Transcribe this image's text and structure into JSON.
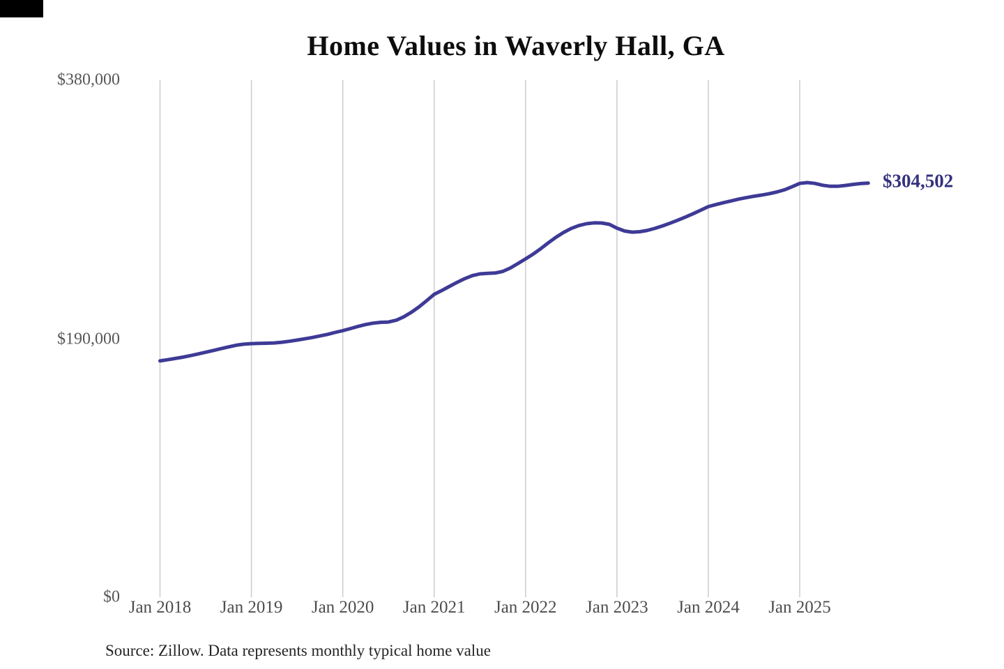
{
  "chart_data": {
    "type": "line",
    "title": "Home Values in Waverly Hall, GA",
    "source": "Source: Zillow. Data represents monthly typical home value",
    "end_label": "$304,502",
    "end_value": 304502,
    "xlabel": "",
    "ylabel": "",
    "ylim": [
      0,
      380000
    ],
    "grid": "vertical-only",
    "legend": "none",
    "line_color": "#3e3a96",
    "end_label_color": "#34317f",
    "grid_color": "#cccccc",
    "x_ticks": [
      "Jan 2018",
      "Jan 2019",
      "Jan 2020",
      "Jan 2021",
      "Jan 2022",
      "Jan 2023",
      "Jan 2024",
      "Jan 2025"
    ],
    "y_ticks": [
      {
        "label": "$380,000",
        "value": 380000
      },
      {
        "label": "$190,000",
        "value": 190000
      },
      {
        "label": "$0",
        "value": 0
      }
    ],
    "series": [
      {
        "name": "Monthly typical home value",
        "months": [
          "2018-01",
          "2018-02",
          "2018-03",
          "2018-04",
          "2018-05",
          "2018-06",
          "2018-07",
          "2018-08",
          "2018-09",
          "2018-10",
          "2018-11",
          "2018-12",
          "2019-01",
          "2019-02",
          "2019-03",
          "2019-04",
          "2019-05",
          "2019-06",
          "2019-07",
          "2019-08",
          "2019-09",
          "2019-10",
          "2019-11",
          "2019-12",
          "2020-01",
          "2020-02",
          "2020-03",
          "2020-04",
          "2020-05",
          "2020-06",
          "2020-07",
          "2020-08",
          "2020-09",
          "2020-10",
          "2020-11",
          "2020-12",
          "2021-01",
          "2021-02",
          "2021-03",
          "2021-04",
          "2021-05",
          "2021-06",
          "2021-07",
          "2021-08",
          "2021-09",
          "2021-10",
          "2021-11",
          "2021-12",
          "2022-01",
          "2022-02",
          "2022-03",
          "2022-04",
          "2022-05",
          "2022-06",
          "2022-07",
          "2022-08",
          "2022-09",
          "2022-10",
          "2022-11",
          "2022-12",
          "2023-01",
          "2023-02",
          "2023-03",
          "2023-04",
          "2023-05",
          "2023-06",
          "2023-07",
          "2023-08",
          "2023-09",
          "2023-10",
          "2023-11",
          "2023-12",
          "2024-01",
          "2024-02",
          "2024-03",
          "2024-04",
          "2024-05",
          "2024-06",
          "2024-07",
          "2024-08",
          "2024-09",
          "2024-10",
          "2024-11",
          "2024-12",
          "2025-01",
          "2025-02",
          "2025-03",
          "2025-04",
          "2025-05",
          "2025-06",
          "2025-07",
          "2025-08",
          "2025-09",
          "2025-10"
        ],
        "values": [
          174200,
          175100,
          176000,
          177000,
          178100,
          179300,
          180600,
          181900,
          183200,
          184500,
          185700,
          186500,
          186900,
          187100,
          187200,
          187400,
          187900,
          188600,
          189500,
          190400,
          191400,
          192500,
          193700,
          195100,
          196400,
          197900,
          199500,
          200900,
          201900,
          202500,
          202700,
          204000,
          206500,
          209800,
          213800,
          218300,
          223000,
          225800,
          228800,
          231800,
          234500,
          236700,
          238000,
          238400,
          238600,
          239800,
          242300,
          245600,
          249000,
          252500,
          256500,
          260800,
          264900,
          268400,
          271300,
          273400,
          274800,
          275400,
          275300,
          274300,
          271500,
          269400,
          268600,
          268900,
          269900,
          271400,
          273200,
          275200,
          277400,
          279700,
          282100,
          284700,
          287300,
          288800,
          290200,
          291500,
          292800,
          293900,
          294900,
          295800,
          296800,
          298000,
          299600,
          301900,
          304300,
          304900,
          304300,
          303000,
          302200,
          302200,
          302800,
          303600,
          304200,
          304502
        ]
      }
    ]
  }
}
